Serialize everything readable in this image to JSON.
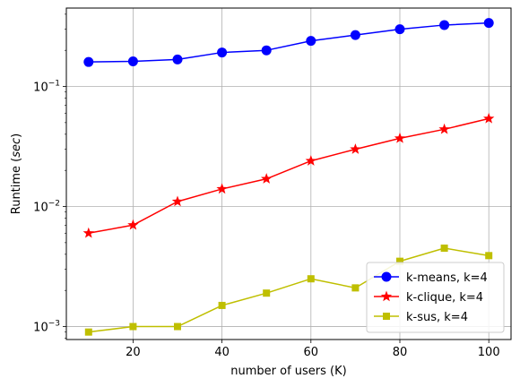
{
  "chart_data": {
    "type": "line",
    "x": [
      10,
      20,
      30,
      40,
      50,
      60,
      70,
      80,
      90,
      100
    ],
    "xlabel": "number of users (K)",
    "ylabel": "Runtime (sec)",
    "ylabel_parts": {
      "prefix": "Runtime (",
      "unit": "sec",
      "suffix": ")"
    },
    "xlim": [
      5,
      105
    ],
    "ylim": [
      0.00078,
      0.45
    ],
    "yscale": "log",
    "grid": true,
    "legend_position": "lower-right",
    "xticks": [
      20,
      40,
      60,
      80,
      100
    ],
    "x_tick_labels": [
      "20",
      "40",
      "60",
      "80",
      "100"
    ],
    "yticks": [
      0.001,
      0.01,
      0.1
    ],
    "y_tick_labels": [
      {
        "base": "10",
        "exp": "−3"
      },
      {
        "base": "10",
        "exp": "−2"
      },
      {
        "base": "10",
        "exp": "−1"
      }
    ],
    "series": [
      {
        "name": "k-means, k=4",
        "color": "#0000ff",
        "marker": "circle",
        "values": [
          0.16,
          0.162,
          0.168,
          0.192,
          0.2,
          0.24,
          0.268,
          0.3,
          0.325,
          0.338
        ]
      },
      {
        "name": "k-clique, k=4",
        "color": "#ff0000",
        "marker": "star",
        "values": [
          0.006,
          0.007,
          0.011,
          0.014,
          0.017,
          0.024,
          0.03,
          0.037,
          0.044,
          0.054
        ]
      },
      {
        "name": "k-sus, k=4",
        "color": "#bfbf00",
        "marker": "square",
        "values": [
          0.0009,
          0.001,
          0.001,
          0.0015,
          0.0019,
          0.0025,
          0.0021,
          0.0035,
          0.0045,
          0.0039
        ]
      }
    ]
  }
}
